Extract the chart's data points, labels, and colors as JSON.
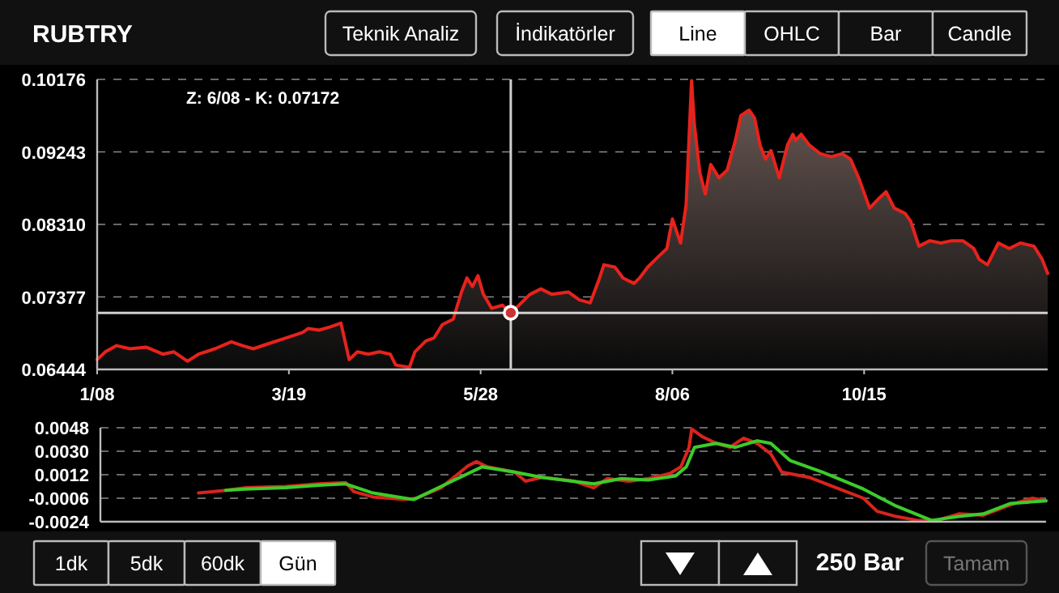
{
  "chart_data": [
    {
      "type": "area",
      "title": "RUBTRY",
      "color": "#e8221c",
      "x": [
        "--01-08",
        "--01-11",
        "--01-15",
        "--01-20",
        "--01-26",
        "--02-01",
        "--02-05",
        "--02-10",
        "--02-14",
        "--02-20",
        "--02-26",
        "--03-02",
        "--03-06",
        "--03-12",
        "--03-18",
        "--03-24",
        "--03-26",
        "--03-30",
        "--04-03",
        "--04-07",
        "--04-10",
        "--04-13",
        "--04-17",
        "--04-21",
        "--04-25",
        "--04-27",
        "--05-02",
        "--05-04",
        "--05-08",
        "--05-11",
        "--05-14",
        "--05-18",
        "--05-21",
        "--05-23",
        "--05-25",
        "--05-27",
        "--05-29",
        "--06-01",
        "--06-05",
        "--06-08",
        "--06-11",
        "--06-15",
        "--06-19",
        "--06-23",
        "--06-29",
        "--07-03",
        "--07-07",
        "--07-10",
        "--07-12",
        "--07-16",
        "--07-19",
        "--07-23",
        "--07-25",
        "--07-28",
        "--08-01",
        "--08-04",
        "--08-06",
        "--08-09",
        "--08-11",
        "--08-13",
        "--08-14",
        "--08-16",
        "--08-18",
        "--08-20",
        "--08-23",
        "--08-26",
        "--08-29",
        "--08-31",
        "--09-03",
        "--09-05",
        "--09-07",
        "--09-09",
        "--09-11",
        "--09-14",
        "--09-17",
        "--09-19",
        "--09-20",
        "--09-22",
        "--09-25",
        "--09-29",
        "--10-03",
        "--10-07",
        "--10-10",
        "--10-13",
        "--10-17",
        "--10-20",
        "--10-23",
        "--10-26",
        "--10-30",
        "--11-01",
        "--11-04",
        "--11-08",
        "--11-12",
        "--11-16",
        "--11-20",
        "--11-24",
        "--11-26",
        "--11-29",
        "--12-03",
        "--12-07",
        "--12-11",
        "--12-16",
        "--12-19",
        "--12-21"
      ],
      "values": [
        0.0657,
        0.0667,
        0.0675,
        0.0671,
        0.0673,
        0.0664,
        0.0667,
        0.0655,
        0.0664,
        0.0671,
        0.068,
        0.0675,
        0.0671,
        0.0678,
        0.0685,
        0.0692,
        0.0697,
        0.0695,
        0.0699,
        0.0704,
        0.0657,
        0.0667,
        0.0664,
        0.0667,
        0.0664,
        0.065,
        0.0647,
        0.0667,
        0.0681,
        0.0685,
        0.0702,
        0.0709,
        0.0744,
        0.0762,
        0.0751,
        0.0765,
        0.0741,
        0.0723,
        0.0727,
        0.0717,
        0.0727,
        0.0741,
        0.0748,
        0.0741,
        0.0744,
        0.0734,
        0.073,
        0.0758,
        0.0779,
        0.0776,
        0.0762,
        0.0755,
        0.0762,
        0.0776,
        0.079,
        0.08,
        0.0838,
        0.0807,
        0.0856,
        0.1016,
        0.096,
        0.0898,
        0.087,
        0.0908,
        0.0891,
        0.0901,
        0.0939,
        0.0971,
        0.0978,
        0.0968,
        0.0933,
        0.0915,
        0.0926,
        0.0891,
        0.0933,
        0.0947,
        0.0939,
        0.0947,
        0.0933,
        0.0922,
        0.0918,
        0.0922,
        0.0915,
        0.0891,
        0.0852,
        0.0863,
        0.0873,
        0.0852,
        0.0845,
        0.0835,
        0.0803,
        0.081,
        0.0807,
        0.081,
        0.081,
        0.08,
        0.0786,
        0.0779,
        0.0807,
        0.08,
        0.0807,
        0.0803,
        0.0786,
        0.0768
      ],
      "xlim": [
        "--01-08",
        "--12-21"
      ],
      "xticks": [
        {
          "value": "--01-08",
          "label": "1/08"
        },
        {
          "value": "--03-19",
          "label": "3/19"
        },
        {
          "value": "--05-28",
          "label": "5/28"
        },
        {
          "value": "--08-06",
          "label": "8/06"
        },
        {
          "value": "--10-15",
          "label": "10/15"
        }
      ],
      "ylim": [
        0.06444,
        0.10176
      ],
      "yticks": [
        0.06444,
        0.07377,
        {
          "value": 0.0831,
          "label": "0.08310"
        },
        0.09243,
        0.10176
      ],
      "grid": "y",
      "ref_lines": [
        {
          "axis": "x",
          "value": "--06-08"
        },
        {
          "axis": "y",
          "value": 0.07172
        }
      ],
      "annotations": [
        "Z: 6/08 - K: 0.07172",
        "Teknik Analiz",
        "İndikatörler",
        "Line",
        "OHLC",
        "Bar",
        "Candle",
        "1dk",
        "5dk",
        "60dk",
        "Gün",
        "250 Bar",
        "Tamam"
      ]
    },
    {
      "type": "line",
      "xlim": [
        "--01-08",
        "--12-21"
      ],
      "ylim": [
        -0.0024,
        0.0048
      ],
      "yticks": [
        {
          "value": 0.0048,
          "label": "0.0048"
        },
        {
          "value": 0.003,
          "label": "0.0030"
        },
        {
          "value": 0.0012,
          "label": "0.0012"
        },
        {
          "value": -0.0006,
          "label": "-0.0006"
        },
        {
          "value": -0.0024,
          "label": "-0.0024"
        }
      ],
      "grid": "y",
      "tick_labels": "y",
      "series": [
        {
          "color": "#d8241c",
          "x": [
            "--02-13",
            "--02-23",
            "--03-02",
            "--03-17",
            "--03-29",
            "--04-08",
            "--04-11",
            "--04-18",
            "--04-30",
            "--05-04",
            "--05-13",
            "--05-23",
            "--05-26",
            "--05-30",
            "--06-09",
            "--06-13",
            "--06-19",
            "--07-01",
            "--07-08",
            "--07-13",
            "--07-21",
            "--07-28",
            "--08-05",
            "--08-09",
            "--08-12",
            "--08-13",
            "--08-17",
            "--08-22",
            "--08-27",
            "--09-01",
            "--09-06",
            "--09-11",
            "--09-15",
            "--09-25",
            "--10-05",
            "--10-15",
            "--10-20",
            "--10-27",
            "--11-04",
            "--11-11",
            "--11-19",
            "--11-28",
            "--12-08",
            "--12-16",
            "--12-21"
          ],
          "values": [
            -0.0002,
            0.0,
            0.0002,
            0.0003,
            0.0005,
            0.0006,
            -0.0001,
            -0.0005,
            -0.0007,
            -0.0006,
            0.0002,
            0.0019,
            0.0022,
            0.0018,
            0.0014,
            0.0007,
            0.001,
            0.0007,
            0.0002,
            0.0009,
            0.0007,
            0.0009,
            0.0013,
            0.0018,
            0.0033,
            0.0047,
            0.0041,
            0.0036,
            0.0033,
            0.004,
            0.0036,
            0.0028,
            0.0014,
            0.001,
            0.0002,
            -0.0006,
            -0.0016,
            -0.002,
            -0.0023,
            -0.0023,
            -0.0018,
            -0.0019,
            -0.0011,
            -0.0006,
            -0.0008
          ]
        },
        {
          "color": "#3ccc2a",
          "x": [
            "--02-23",
            "--03-02",
            "--03-17",
            "--03-29",
            "--04-08",
            "--04-18",
            "--05-03",
            "--05-15",
            "--05-28",
            "--06-09",
            "--06-19",
            "--07-08",
            "--07-18",
            "--07-28",
            "--08-07",
            "--08-11",
            "--08-14",
            "--08-22",
            "--08-29",
            "--09-06",
            "--09-11",
            "--09-18",
            "--09-30",
            "--10-15",
            "--10-27",
            "--11-09",
            "--11-19",
            "--11-28",
            "--12-08",
            "--12-21"
          ],
          "values": [
            0.0,
            0.0001,
            0.0002,
            0.0004,
            0.0005,
            -0.0002,
            -0.0007,
            0.0005,
            0.0018,
            0.0014,
            0.001,
            0.0005,
            0.0009,
            0.0008,
            0.0011,
            0.0018,
            0.0033,
            0.0036,
            0.0033,
            0.0038,
            0.0036,
            0.0023,
            0.0014,
            0.0001,
            -0.0012,
            -0.0023,
            -0.002,
            -0.0018,
            -0.001,
            -0.0008
          ]
        }
      ]
    }
  ]
}
